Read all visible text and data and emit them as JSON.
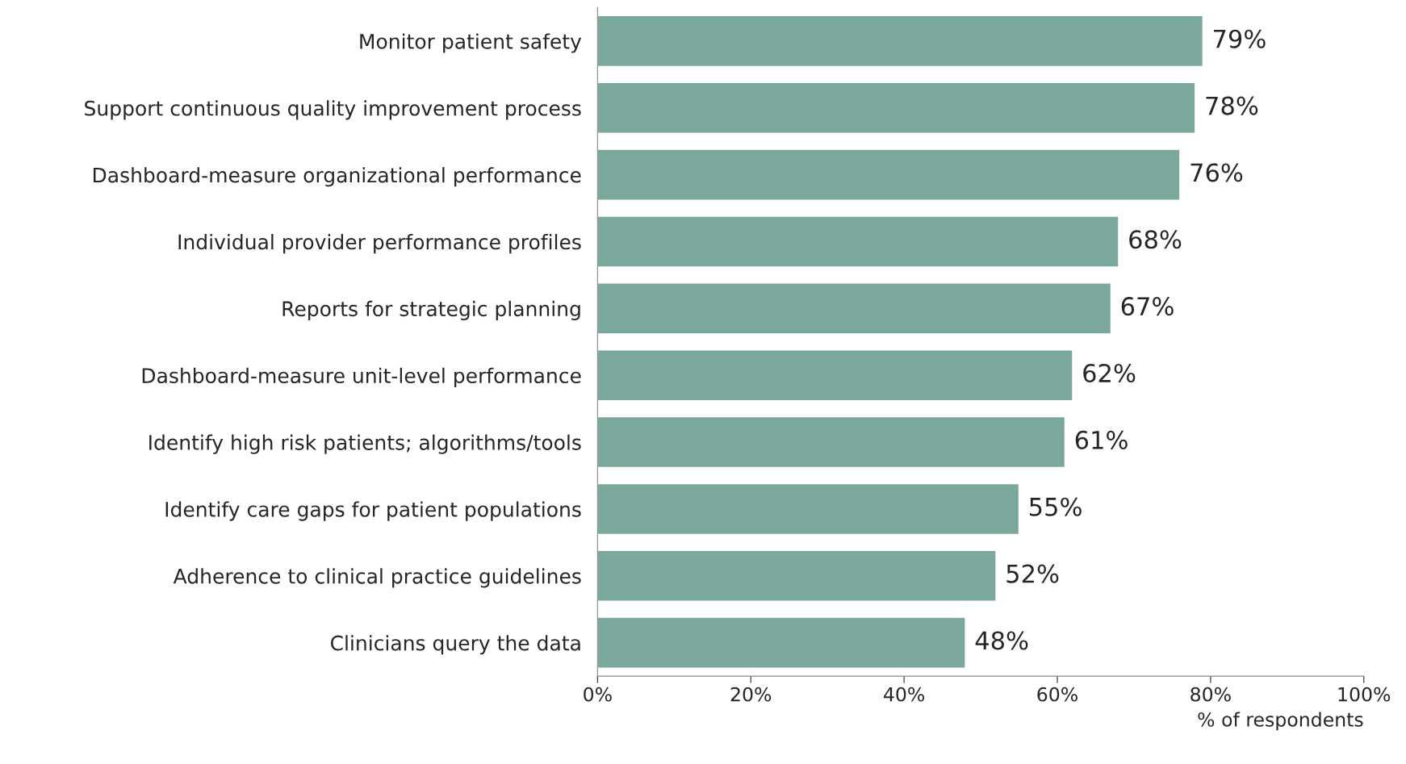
{
  "chart_data": {
    "type": "bar",
    "orientation": "horizontal",
    "xlabel": "% of respondents",
    "categories": [
      "Monitor patient safety",
      "Support continuous quality improvement process",
      "Dashboard-measure organizational performance",
      "Individual provider performance profiles",
      "Reports for strategic planning",
      "Dashboard-measure unit-level performance",
      "Identify high risk patients; algorithms/tools",
      "Identify care gaps for patient populations",
      "Adherence to clinical practice guidelines",
      "Clinicians query the data"
    ],
    "values": [
      79,
      78,
      76,
      68,
      67,
      62,
      61,
      55,
      52,
      48
    ],
    "value_labels": [
      "79%",
      "78%",
      "76%",
      "68%",
      "67%",
      "62%",
      "61%",
      "55%",
      "52%",
      "48%"
    ],
    "color": "#7aa89c",
    "xlim": [
      0,
      100
    ],
    "xticks": [
      {
        "value": 0,
        "label": "0%"
      },
      {
        "value": 20,
        "label": "20%"
      },
      {
        "value": 40,
        "label": "40%"
      },
      {
        "value": 60,
        "label": "60%"
      },
      {
        "value": 80,
        "label": "80%"
      },
      {
        "value": 100,
        "label": "100%"
      }
    ],
    "grid": false,
    "legend": false
  }
}
